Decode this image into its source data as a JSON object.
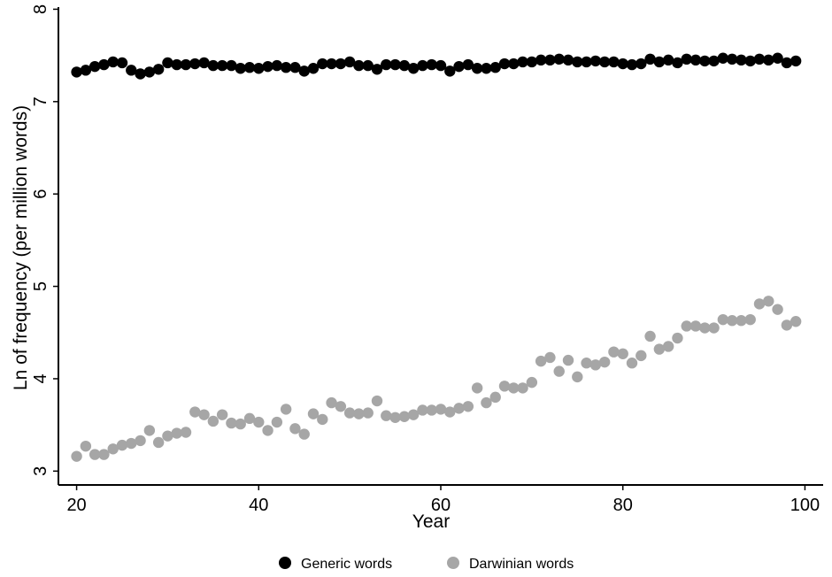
{
  "chart_data": {
    "type": "scatter",
    "xlabel": "Year",
    "ylabel": "Ln of frequency (per million words)",
    "xlim": [
      18,
      102
    ],
    "ylim": [
      2.85,
      8.1
    ],
    "xticks": [
      20,
      40,
      60,
      80,
      100
    ],
    "yticks": [
      3,
      4,
      5,
      6,
      7,
      8
    ],
    "grid": false,
    "legend_position": "bottom-center",
    "x": [
      20,
      21,
      22,
      23,
      24,
      25,
      26,
      27,
      28,
      29,
      30,
      31,
      32,
      33,
      34,
      35,
      36,
      37,
      38,
      39,
      40,
      41,
      42,
      43,
      44,
      45,
      46,
      47,
      48,
      49,
      50,
      51,
      52,
      53,
      54,
      55,
      56,
      57,
      58,
      59,
      60,
      61,
      62,
      63,
      64,
      65,
      66,
      67,
      68,
      69,
      70,
      71,
      72,
      73,
      74,
      75,
      76,
      77,
      78,
      79,
      80,
      81,
      82,
      83,
      84,
      85,
      86,
      87,
      88,
      89,
      90,
      91,
      92,
      93,
      94,
      95,
      96,
      97,
      98,
      99
    ],
    "series": [
      {
        "name": "Generic words",
        "color": "#000000",
        "values": [
          7.32,
          7.34,
          7.38,
          7.4,
          7.43,
          7.42,
          7.34,
          7.3,
          7.32,
          7.35,
          7.42,
          7.4,
          7.4,
          7.41,
          7.42,
          7.39,
          7.39,
          7.39,
          7.36,
          7.37,
          7.36,
          7.38,
          7.39,
          7.37,
          7.37,
          7.33,
          7.36,
          7.41,
          7.41,
          7.41,
          7.43,
          7.39,
          7.39,
          7.35,
          7.4,
          7.4,
          7.39,
          7.36,
          7.39,
          7.4,
          7.39,
          7.33,
          7.38,
          7.4,
          7.36,
          7.36,
          7.37,
          7.41,
          7.41,
          7.43,
          7.43,
          7.45,
          7.45,
          7.46,
          7.45,
          7.43,
          7.43,
          7.44,
          7.43,
          7.43,
          7.41,
          7.4,
          7.41,
          7.46,
          7.43,
          7.45,
          7.42,
          7.46,
          7.45,
          7.44,
          7.44,
          7.47,
          7.46,
          7.45,
          7.44,
          7.46,
          7.45,
          7.47,
          7.42,
          7.44
        ]
      },
      {
        "name": "Darwinian words",
        "color": "#a6a6a6",
        "values": [
          3.16,
          3.27,
          3.18,
          3.18,
          3.24,
          3.28,
          3.3,
          3.33,
          3.44,
          3.31,
          3.38,
          3.41,
          3.42,
          3.64,
          3.61,
          3.54,
          3.61,
          3.52,
          3.51,
          3.57,
          3.53,
          3.44,
          3.53,
          3.67,
          3.46,
          3.4,
          3.62,
          3.56,
          3.74,
          3.7,
          3.63,
          3.62,
          3.63,
          3.76,
          3.6,
          3.58,
          3.59,
          3.61,
          3.66,
          3.66,
          3.67,
          3.64,
          3.68,
          3.7,
          3.9,
          3.74,
          3.8,
          3.92,
          3.9,
          3.9,
          3.96,
          4.19,
          4.23,
          4.08,
          4.2,
          4.02,
          4.17,
          4.15,
          4.18,
          4.29,
          4.27,
          4.17,
          4.25,
          4.46,
          4.32,
          4.35,
          4.44,
          4.57,
          4.57,
          4.55,
          4.55,
          4.64,
          4.63,
          4.63,
          4.64,
          4.81,
          4.84,
          4.75,
          4.58,
          4.62
        ]
      }
    ]
  }
}
